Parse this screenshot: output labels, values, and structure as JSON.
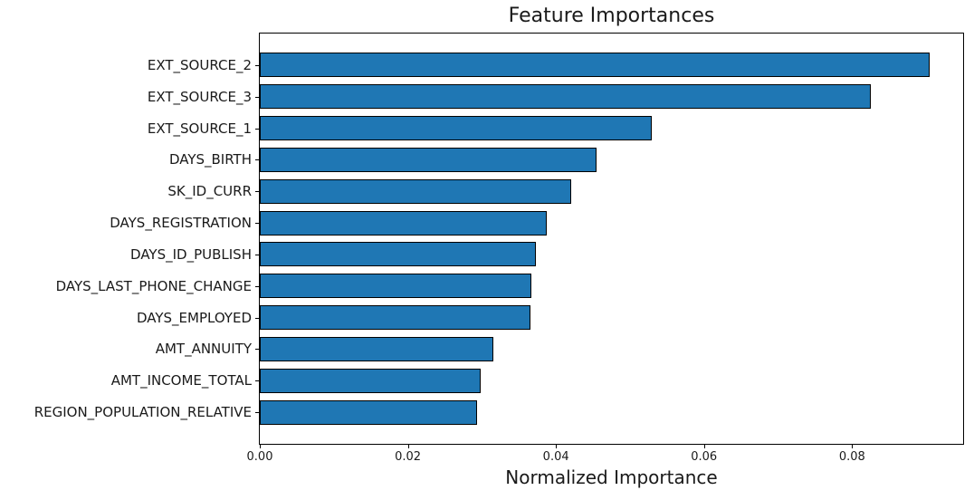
{
  "chart_data": {
    "type": "bar",
    "orientation": "horizontal",
    "title": "Feature Importances",
    "xlabel": "Normalized Importance",
    "ylabel": "",
    "categories": [
      "EXT_SOURCE_2",
      "EXT_SOURCE_3",
      "EXT_SOURCE_1",
      "DAYS_BIRTH",
      "SK_ID_CURR",
      "DAYS_REGISTRATION",
      "DAYS_ID_PUBLISH",
      "DAYS_LAST_PHONE_CHANGE",
      "DAYS_EMPLOYED",
      "AMT_ANNUITY",
      "AMT_INCOME_TOTAL",
      "REGION_POPULATION_RELATIVE"
    ],
    "values": [
      0.0905,
      0.0825,
      0.053,
      0.0455,
      0.0421,
      0.0388,
      0.0373,
      0.0367,
      0.0365,
      0.0315,
      0.0298,
      0.0293
    ],
    "xlim": [
      0,
      0.095
    ],
    "xticks": [
      0,
      0.02,
      0.04,
      0.06,
      0.08
    ],
    "xtick_labels": [
      "0.00",
      "0.02",
      "0.04",
      "0.06",
      "0.08"
    ],
    "grid": false,
    "legend": null,
    "sort_order": "descending",
    "bar_color": "#1f77b4",
    "bar_edge_color": "#000000",
    "axis_color": "#000000",
    "text_color": "#1a1a1a",
    "background_color": "#ffffff"
  }
}
